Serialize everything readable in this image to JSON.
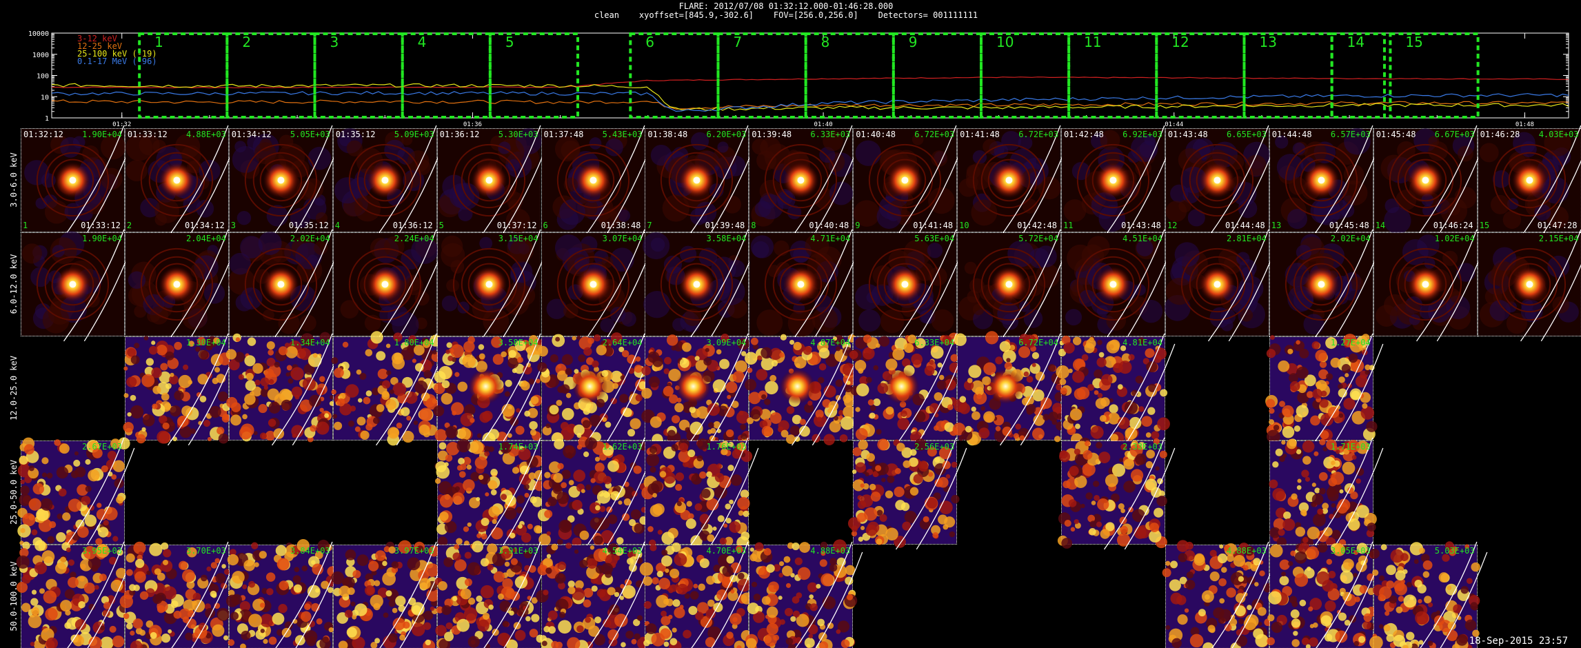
{
  "header": {
    "title": "FLARE: 2012/07/08 01:32:12.000-01:46:28.000",
    "subtitle": "clean    xyoffset=[845.9,-302.6]    FOV=[256.0,256.0]    Detectors= 001111111"
  },
  "chart_data": {
    "type": "line",
    "y_scale": "log",
    "ylim": [
      1,
      10000
    ],
    "y_ticks": [
      "10000",
      "1000",
      "100",
      "10",
      "1"
    ],
    "x_ticks": [
      "01:32",
      "01:36",
      "01:40",
      "01:44",
      "01:48"
    ],
    "xlim_minutes": [
      31.2,
      48.5
    ],
    "series": [
      {
        "name": "3-12 keV",
        "color": "#d02020",
        "x": [
          31.2,
          33,
          35,
          37,
          38.0,
          40,
          42,
          44,
          46,
          48.5
        ],
        "y": [
          28,
          27,
          28,
          28,
          58,
          70,
          82,
          78,
          72,
          67
        ]
      },
      {
        "name": "12-25 keV",
        "color": "#e07010",
        "x": [
          31.2,
          33,
          35,
          37,
          38.0,
          38.3,
          40,
          42,
          44,
          46,
          48.5
        ],
        "y": [
          6,
          5.5,
          6,
          5.5,
          6,
          3,
          4,
          4,
          4.5,
          5,
          5
        ]
      },
      {
        "name": "25-100 keV (-19)",
        "color": "#e6e61a",
        "x": [
          31.2,
          33,
          35,
          37,
          38.0,
          38.3,
          40,
          42,
          44,
          46,
          48.5
        ],
        "y": [
          35,
          32,
          34,
          33,
          30,
          2.5,
          3,
          3,
          3.5,
          4,
          4
        ]
      },
      {
        "name": "0.1-17 MeV (-96)",
        "color": "#3a7ae6",
        "x": [
          31.2,
          33,
          35,
          37,
          38.0,
          38.3,
          40,
          42,
          44,
          46,
          48.5
        ],
        "y": [
          14,
          14,
          15,
          14,
          14,
          2,
          5,
          7,
          9,
          11,
          12
        ]
      }
    ],
    "intervals": [
      "1",
      "2",
      "3",
      "4",
      "5",
      "6",
      "7",
      "8",
      "9",
      "10",
      "11",
      "12",
      "13",
      "14",
      "15"
    ]
  },
  "energy_bands": [
    "3.0-6.0 keV",
    "6.0-12.0 keV",
    "12.0-25.0 keV",
    "25.0-50.0 keV",
    "50.0-100.0 keV"
  ],
  "grid": {
    "start_times": [
      "01:32:12",
      "01:33:12",
      "01:34:12",
      "01:35:12",
      "01:36:12",
      "01:37:48",
      "01:38:48",
      "01:39:48",
      "01:40:48",
      "01:41:48",
      "01:42:48",
      "01:43:48",
      "01:44:48",
      "01:45:48",
      "01:46:28"
    ],
    "end_times": [
      "01:33:12",
      "01:34:12",
      "01:35:12",
      "01:36:12",
      "01:37:12",
      "01:38:48",
      "01:39:48",
      "01:40:48",
      "01:41:48",
      "01:42:48",
      "01:43:48",
      "01:44:48",
      "01:45:48",
      "01:46:24",
      "01:47:28"
    ],
    "rows": [
      {
        "band": "3.0-6.0 keV",
        "style": "source",
        "cells": [
          {
            "max": "1.90E+04"
          },
          {
            "max": "4.88E+03"
          },
          {
            "max": "5.05E+03"
          },
          {
            "max": "5.09E+03"
          },
          {
            "max": "5.30E+03"
          },
          {
            "max": "5.43E+03"
          },
          {
            "max": "6.20E+03"
          },
          {
            "max": "6.33E+03"
          },
          {
            "max": "6.72E+03"
          },
          {
            "max": "6.72E+03"
          },
          {
            "max": "6.92E+03"
          },
          {
            "max": "6.65E+03"
          },
          {
            "max": "6.57E+03"
          },
          {
            "max": "6.67E+03"
          },
          {
            "max": "4.03E+03"
          }
        ]
      },
      {
        "band": "6.0-12.0 keV",
        "style": "source",
        "cells": [
          {
            "max": "1.90E+04"
          },
          {
            "max": "2.04E+04"
          },
          {
            "max": "2.02E+04"
          },
          {
            "max": "2.24E+04"
          },
          {
            "max": "3.15E+04"
          },
          {
            "max": "3.07E+04"
          },
          {
            "max": "3.58E+04"
          },
          {
            "max": "4.71E+04"
          },
          {
            "max": "5.63E+04"
          },
          {
            "max": "5.72E+04"
          },
          {
            "max": "4.51E+04"
          },
          {
            "max": "2.81E+04"
          },
          {
            "max": "2.02E+04"
          },
          {
            "max": "1.02E+04"
          },
          {
            "max": "2.15E+04"
          }
        ]
      },
      {
        "band": "12.0-25.0 keV",
        "style": "noise",
        "cells": [
          null,
          {
            "max": "1.30E+04"
          },
          {
            "max": "1.34E+04"
          },
          {
            "max": "1.80E+04"
          },
          {
            "max": "3.58E+04"
          },
          {
            "max": "2.64E+04"
          },
          {
            "max": "3.09E+04"
          },
          {
            "max": "4.87E+04"
          },
          {
            "max": "6.33E+04"
          },
          {
            "max": "6.72E+04"
          },
          {
            "max": "4.81E+04"
          },
          null,
          {
            "max": "1.27E+04"
          },
          null,
          null
        ]
      },
      {
        "band": "25.0-50.0 keV",
        "style": "noise",
        "cells": [
          {
            "max": "2.67E+03"
          },
          null,
          null,
          null,
          {
            "max": "1.74E+03"
          },
          {
            "max": "1.62E+03"
          },
          {
            "max": "1.76E+03"
          },
          null,
          {
            "max": "2.56E+03"
          },
          null,
          {
            "max": "2.33E+03"
          },
          null,
          {
            "max": "1.71E+03"
          },
          null,
          null
        ]
      },
      {
        "band": "50.0-100.0 keV",
        "style": "noise",
        "cells": [
          {
            "max": "3.95E+03"
          },
          {
            "max": "3.70E+03"
          },
          {
            "max": "3.84E+03"
          },
          {
            "max": "3.97E+03"
          },
          {
            "max": "3.91E+03"
          },
          {
            "max": "4.54E+03"
          },
          {
            "max": "4.70E+03"
          },
          {
            "max": "4.88E+03"
          },
          null,
          null,
          null,
          {
            "max": "4.88E+03"
          },
          {
            "max": "3.05E+03"
          },
          {
            "max": "5.03E+03"
          },
          null
        ]
      }
    ]
  },
  "colors": {
    "interval_box": "#22e622",
    "max_label": "#22e622",
    "frame": "#ffffff"
  },
  "footer": {
    "datestamp": "18-Sep-2015 23:57"
  }
}
